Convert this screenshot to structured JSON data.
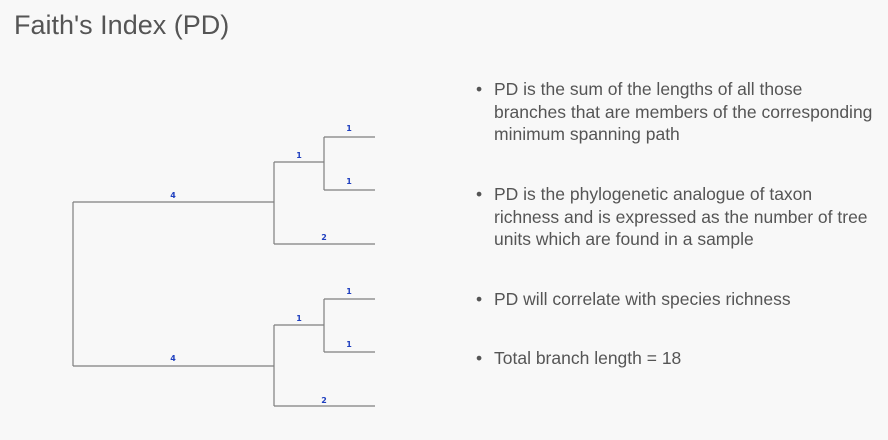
{
  "slide": {
    "title": "Faith's Index (PD)"
  },
  "tree": {
    "clade_top": {
      "root_branch": "4",
      "inner_branch": "1",
      "leaf_a": "1",
      "leaf_b": "1",
      "leaf_c": "2"
    },
    "clade_bottom": {
      "root_branch": "4",
      "inner_branch": "1",
      "leaf_a": "1",
      "leaf_b": "1",
      "leaf_c": "2"
    }
  },
  "bullets": [
    "PD is the sum of the lengths of all those branches that are members of the corresponding minimum spanning path",
    "PD is the phylogenetic analogue of taxon richness and is expressed as the number of tree units which are found in a sample",
    "PD will correlate with species richness",
    "Total branch length = 18"
  ],
  "bullet_glyph": "•"
}
